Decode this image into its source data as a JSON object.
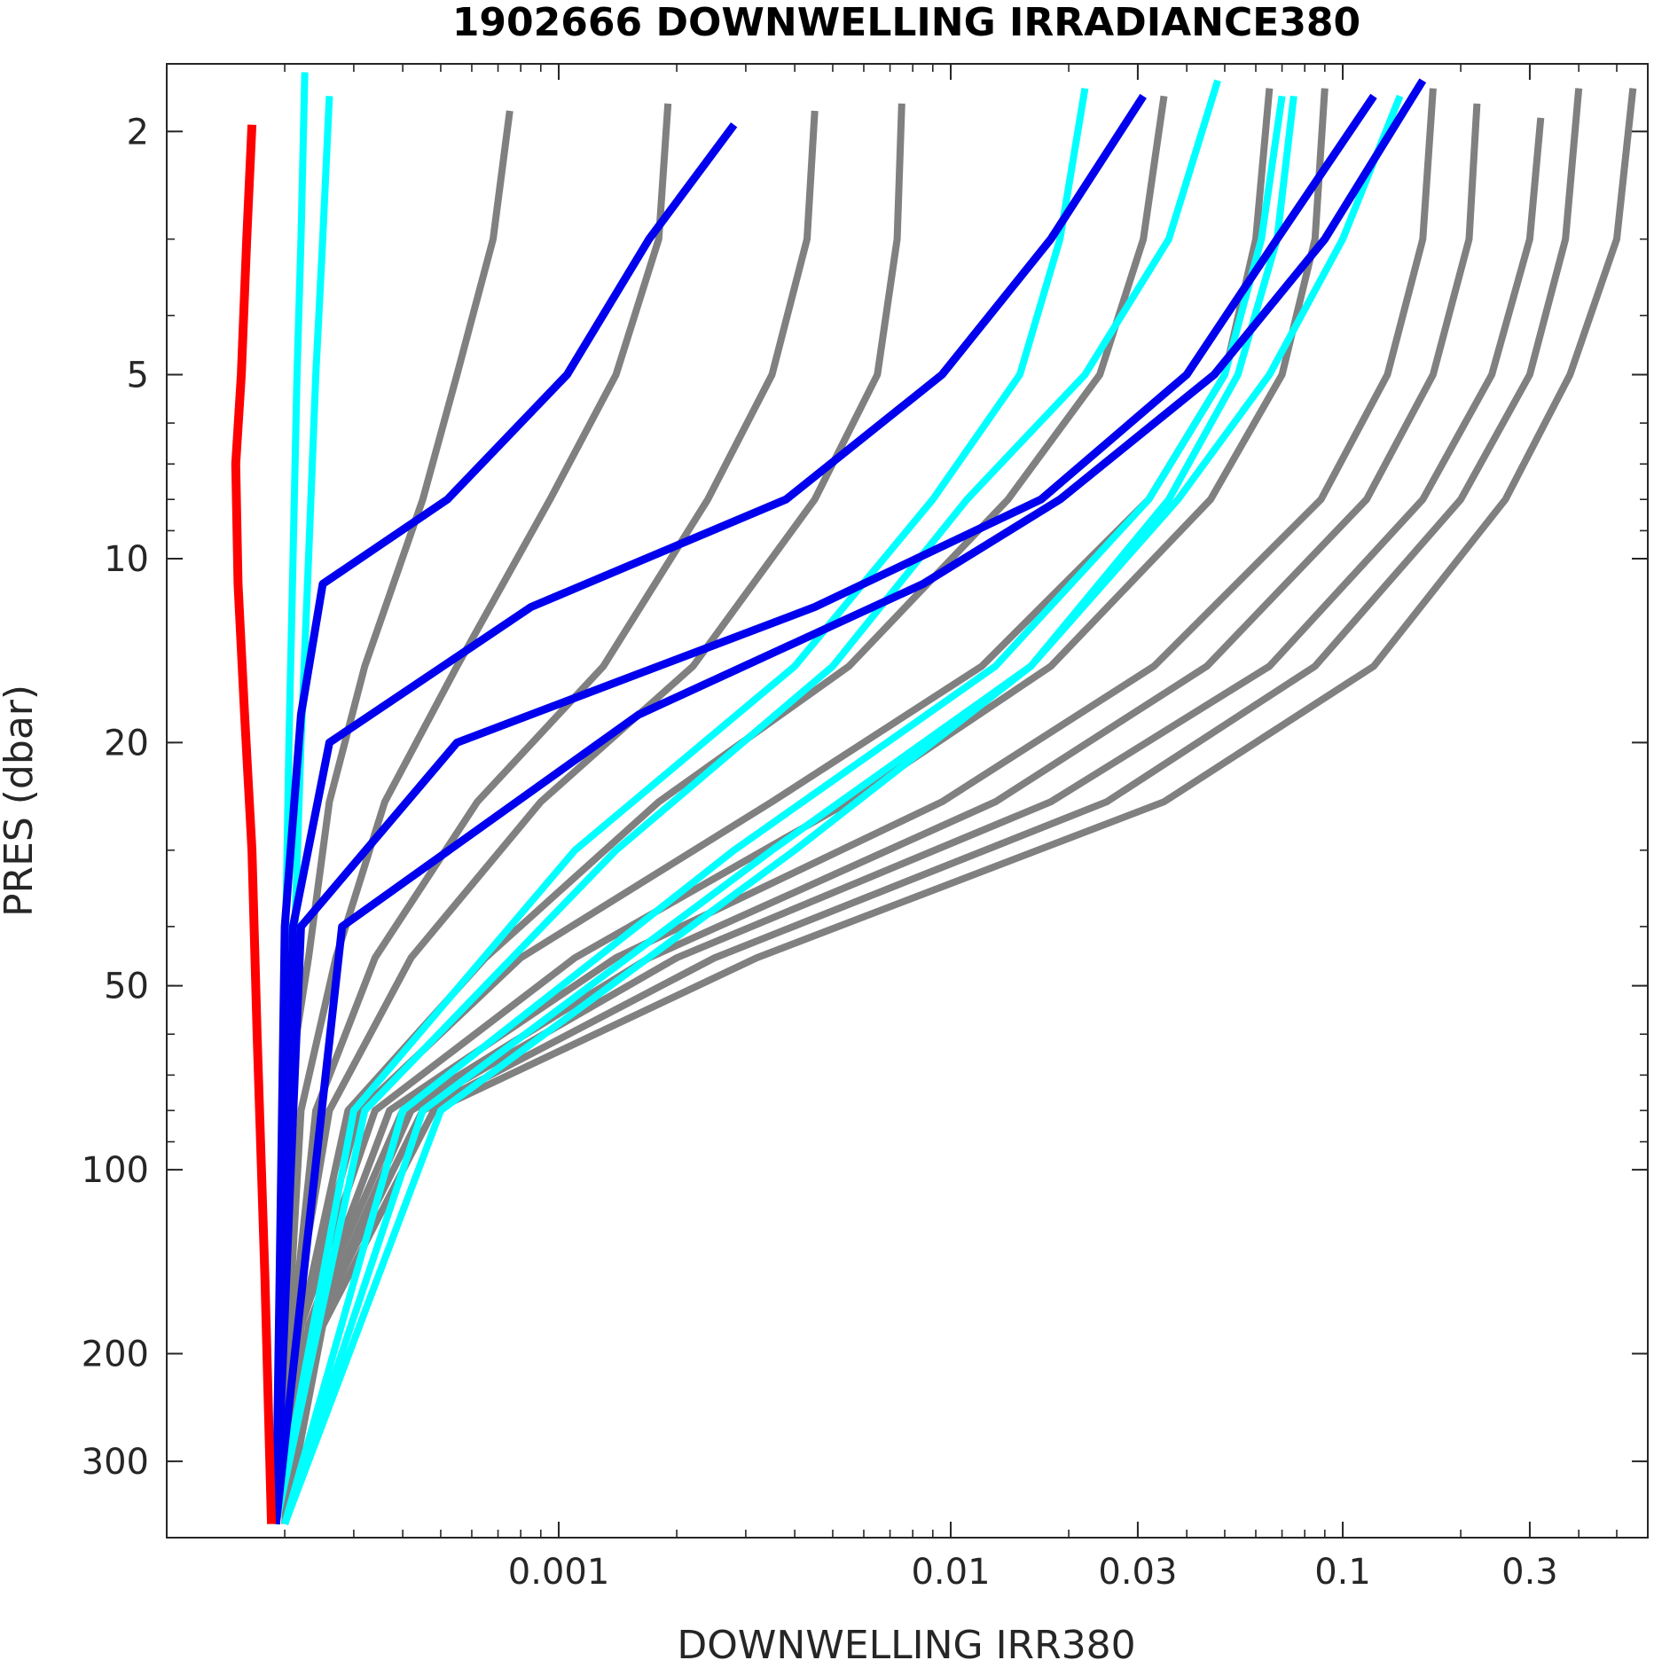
{
  "chart_data": {
    "type": "line",
    "title": "1902666  DOWNWELLING IRRADIANCE380",
    "xlabel": "DOWNWELLING IRR380",
    "ylabel": "PRES (dbar)",
    "x_scale": "log",
    "y_scale": "log",
    "y_reversed": true,
    "xlim": [
      0.0001,
      0.6
    ],
    "ylim": [
      1.55,
      400
    ],
    "x_ticks": [
      0.001,
      0.01,
      0.03,
      0.1,
      0.3
    ],
    "x_tick_labels": [
      "0.001",
      "0.01",
      "0.03",
      "0.1",
      "0.3"
    ],
    "y_ticks": [
      2,
      5,
      10,
      20,
      50,
      100,
      200,
      300
    ],
    "y_tick_labels": [
      "2",
      "5",
      "10",
      "20",
      "50",
      "100",
      "200",
      "300"
    ],
    "grid": false,
    "legend": "none",
    "colors": {
      "gray": "#808080",
      "cyan": "#00ffff",
      "blue": "#0000ee",
      "red": "#ff0000",
      "axis": "#262626"
    },
    "groups": [
      {
        "color": "gray",
        "linewidth": 8,
        "profiles": [
          {
            "x": [
              0.00075,
              0.00068,
              0.00055,
              0.00045,
              0.00032,
              0.00026,
              0.00023,
              0.0002,
              0.000195,
              0.00019
            ],
            "y": [
              1.85,
              3,
              5,
              8,
              15,
              25,
              45,
              80,
              180,
              380
            ]
          },
          {
            "x": [
              0.0019,
              0.0018,
              0.0014,
              0.00095,
              0.00055,
              0.00036,
              0.00027,
              0.00022,
              0.000205,
              0.00019
            ],
            "y": [
              1.8,
              3,
              5,
              8,
              15,
              25,
              45,
              80,
              180,
              380
            ]
          },
          {
            "x": [
              0.0045,
              0.0043,
              0.0035,
              0.0024,
              0.0013,
              0.00062,
              0.00034,
              0.00024,
              0.00021,
              0.00019
            ],
            "y": [
              1.85,
              3,
              5,
              8,
              15,
              25,
              45,
              80,
              180,
              380
            ]
          },
          {
            "x": [
              0.0075,
              0.0073,
              0.0065,
              0.0045,
              0.0022,
              0.0009,
              0.00042,
              0.00026,
              0.00021,
              0.00019
            ],
            "y": [
              1.8,
              3,
              5,
              8,
              15,
              25,
              45,
              80,
              180,
              380
            ]
          },
          {
            "x": [
              0.035,
              0.031,
              0.024,
              0.014,
              0.0055,
              0.0018,
              0.00065,
              0.00029,
              0.00022,
              0.0002
            ],
            "y": [
              1.75,
              3,
              5,
              8,
              15,
              25,
              45,
              80,
              180,
              380
            ]
          },
          {
            "x": [
              0.065,
              0.06,
              0.05,
              0.032,
              0.012,
              0.0035,
              0.0008,
              0.00031,
              0.00022,
              0.0002
            ],
            "y": [
              1.7,
              3,
              5,
              8,
              15,
              25,
              45,
              80,
              180,
              380
            ]
          },
          {
            "x": [
              0.09,
              0.085,
              0.07,
              0.046,
              0.018,
              0.0055,
              0.0011,
              0.00034,
              0.00022,
              0.0002
            ],
            "y": [
              1.7,
              3,
              5,
              8,
              15,
              25,
              45,
              80,
              180,
              380
            ]
          },
          {
            "x": [
              0.17,
              0.16,
              0.13,
              0.088,
              0.033,
              0.0095,
              0.0014,
              0.00037,
              0.00023,
              0.0002
            ],
            "y": [
              1.7,
              3,
              5,
              8,
              15,
              25,
              45,
              80,
              180,
              380
            ]
          },
          {
            "x": [
              0.22,
              0.21,
              0.17,
              0.115,
              0.045,
              0.013,
              0.0017,
              0.0004,
              0.00023,
              0.0002
            ],
            "y": [
              1.8,
              3,
              5,
              8,
              15,
              25,
              45,
              80,
              180,
              380
            ]
          },
          {
            "x": [
              0.32,
              0.3,
              0.24,
              0.16,
              0.065,
              0.018,
              0.002,
              0.00042,
              0.00024,
              0.0002
            ],
            "y": [
              1.9,
              3,
              5,
              8,
              15,
              25,
              45,
              80,
              180,
              380
            ]
          },
          {
            "x": [
              0.4,
              0.37,
              0.3,
              0.2,
              0.085,
              0.025,
              0.0025,
              0.00045,
              0.00024,
              0.0002
            ],
            "y": [
              1.7,
              3,
              5,
              8,
              15,
              25,
              45,
              80,
              180,
              380
            ]
          },
          {
            "x": [
              0.55,
              0.5,
              0.38,
              0.26,
              0.12,
              0.035,
              0.0032,
              0.00048,
              0.00025,
              0.0002
            ],
            "y": [
              1.7,
              3,
              5,
              8,
              15,
              25,
              45,
              80,
              180,
              380
            ]
          }
        ]
      },
      {
        "color": "cyan",
        "linewidth": 8,
        "profiles": [
          {
            "x": [
              0.000225,
              0.00022,
              0.000215,
              0.00021,
              0.000205,
              0.0002,
              0.000195,
              0.00019
            ],
            "y": [
              1.6,
              3,
              5,
              10,
              20,
              50,
              150,
              380
            ]
          },
          {
            "x": [
              0.00026,
              0.00025,
              0.00024,
              0.00023,
              0.00022,
              0.00021,
              0.0002,
              0.00019
            ],
            "y": [
              1.75,
              3,
              5,
              10,
              20,
              50,
              150,
              380
            ]
          },
          {
            "x": [
              0.022,
              0.019,
              0.015,
              0.009,
              0.004,
              0.0011,
              0.0003,
              0.00019
            ],
            "y": [
              1.7,
              3,
              5,
              8,
              15,
              30,
              80,
              380
            ]
          },
          {
            "x": [
              0.048,
              0.036,
              0.022,
              0.011,
              0.005,
              0.0014,
              0.00032,
              0.00019
            ],
            "y": [
              1.65,
              3,
              5,
              8,
              15,
              30,
              80,
              380
            ]
          },
          {
            "x": [
              0.07,
              0.062,
              0.05,
              0.032,
              0.013,
              0.0028,
              0.0004,
              0.0002
            ],
            "y": [
              1.75,
              3,
              5,
              8,
              15,
              30,
              80,
              380
            ]
          },
          {
            "x": [
              0.075,
              0.068,
              0.054,
              0.036,
              0.016,
              0.0035,
              0.00045,
              0.0002
            ],
            "y": [
              1.75,
              3,
              5,
              8,
              15,
              30,
              80,
              380
            ]
          },
          {
            "x": [
              0.14,
              0.1,
              0.065,
              0.038,
              0.016,
              0.004,
              0.0005,
              0.0002
            ],
            "y": [
              1.75,
              3,
              5,
              8,
              15,
              30,
              80,
              380
            ]
          }
        ]
      },
      {
        "color": "blue",
        "linewidth": 9,
        "profiles": [
          {
            "x": [
              0.0028,
              0.0017,
              0.00105,
              0.00052,
              0.00025,
              0.00022,
              0.0002,
              0.00019
            ],
            "y": [
              1.95,
              3,
              5,
              8,
              11,
              18,
              40,
              380
            ]
          },
          {
            "x": [
              0.031,
              0.018,
              0.0095,
              0.0038,
              0.00085,
              0.00026,
              0.00021,
              0.00019
            ],
            "y": [
              1.75,
              3,
              5,
              8,
              12,
              20,
              40,
              380
            ]
          },
          {
            "x": [
              0.12,
              0.068,
              0.04,
              0.017,
              0.0045,
              0.00055,
              0.00022,
              0.00019
            ],
            "y": [
              1.75,
              3,
              5,
              8,
              12,
              20,
              40,
              380
            ]
          },
          {
            "x": [
              0.16,
              0.09,
              0.047,
              0.019,
              0.0085,
              0.0016,
              0.00028,
              0.00019
            ],
            "y": [
              1.65,
              3,
              5,
              8,
              11,
              18,
              40,
              380
            ]
          }
        ]
      },
      {
        "color": "red",
        "linewidth": 10,
        "profiles": [
          {
            "x": [
              0.000165,
              0.00016,
              0.000155,
              0.00015,
              0.000152,
              0.000158,
              0.000165,
              0.00017,
              0.000178,
              0.000185
            ],
            "y": [
              1.95,
              3,
              5,
              7,
              11,
              18,
              30,
              60,
              150,
              380
            ]
          }
        ]
      }
    ]
  }
}
